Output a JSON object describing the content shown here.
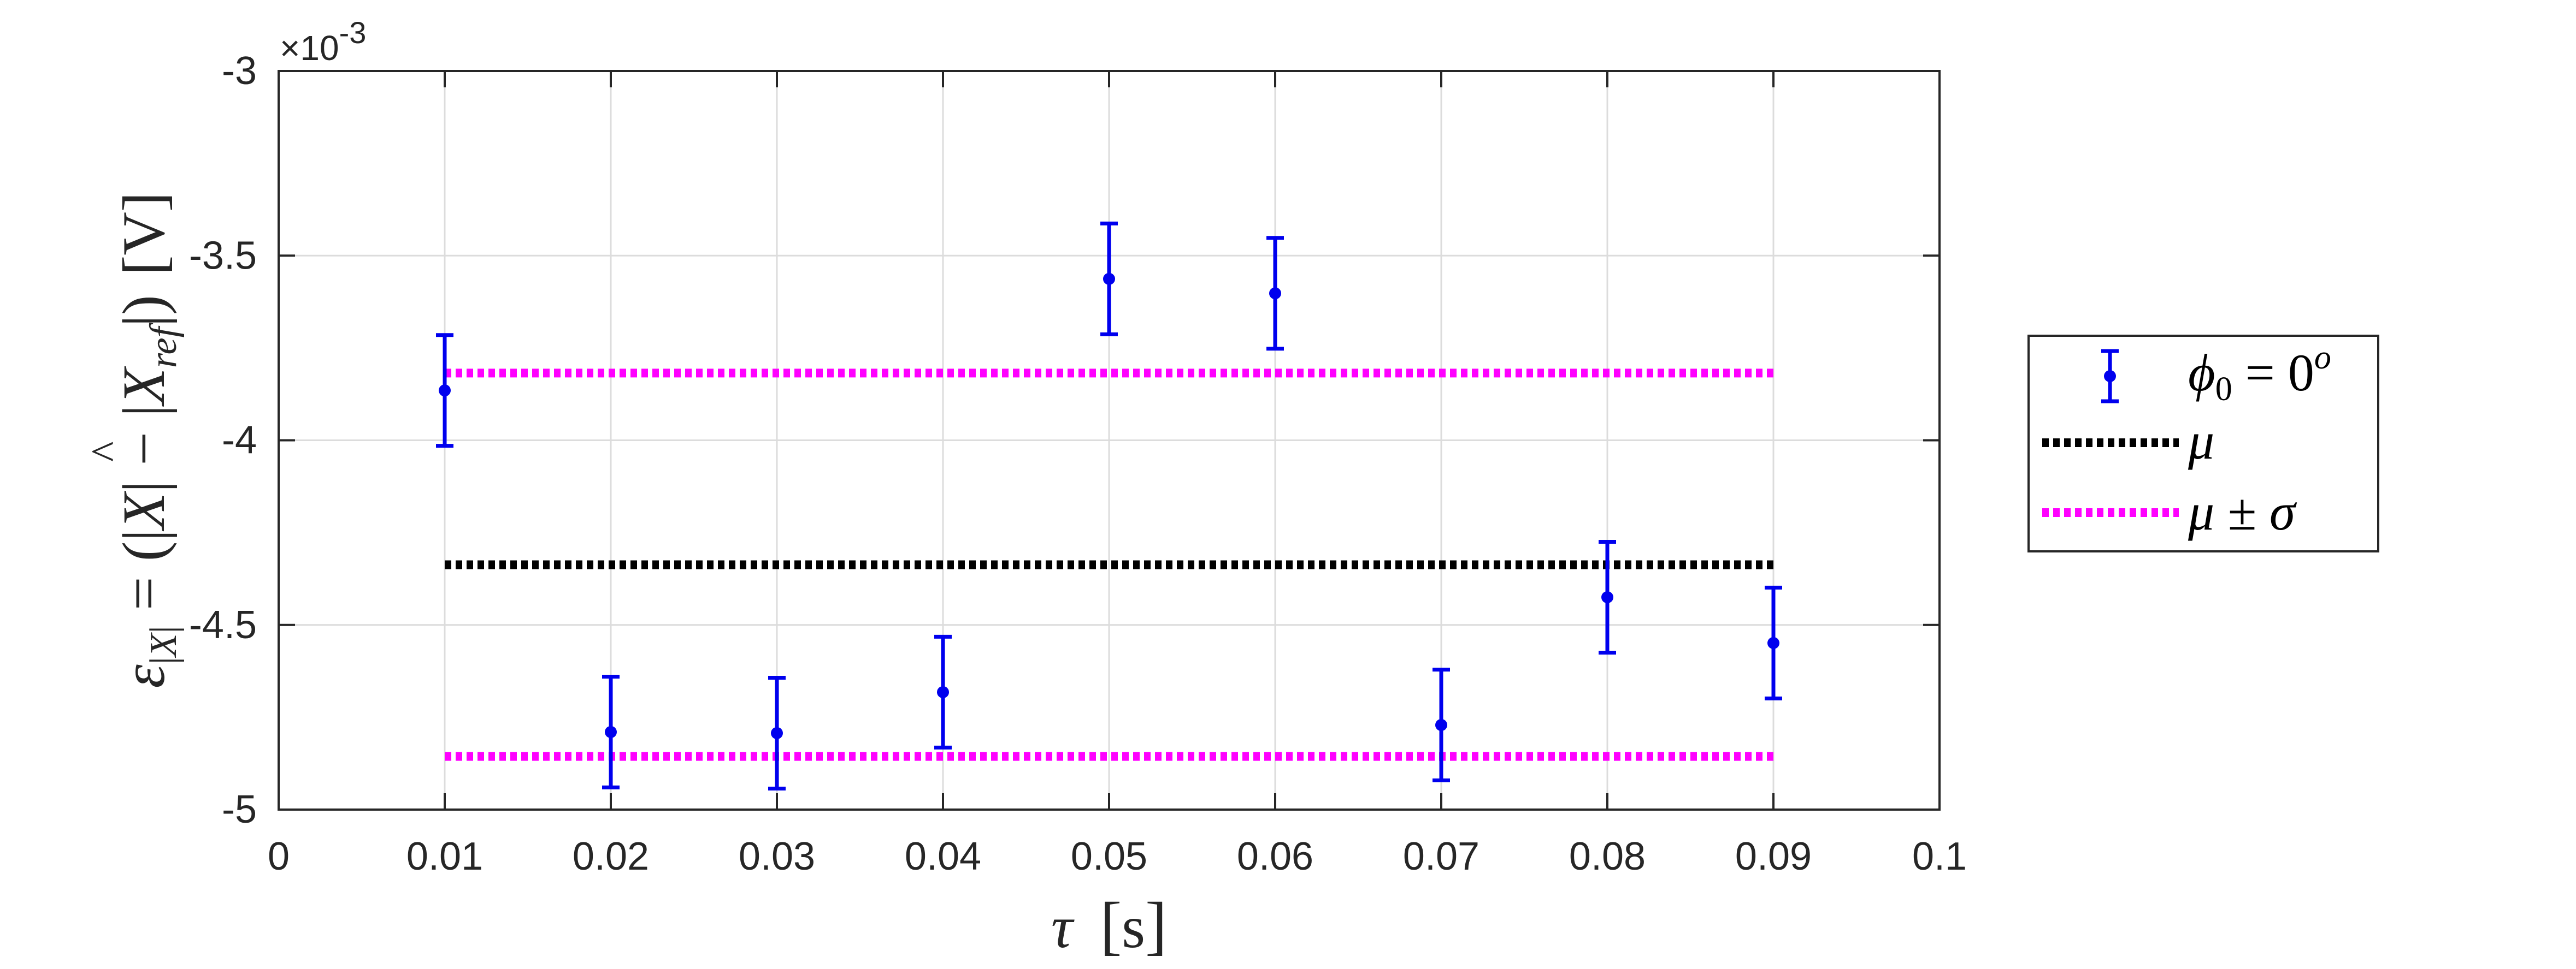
{
  "chart_data": {
    "type": "scatter",
    "title": "",
    "x_ticks": [
      "0",
      "0.01",
      "0.02",
      "0.03",
      "0.04",
      "0.05",
      "0.06",
      "0.07",
      "0.08",
      "0.09",
      "0.1"
    ],
    "y_ticks": [
      "-3",
      "-3.5",
      "-4",
      "-4.5",
      "-5"
    ],
    "y_exponent_prefix": "×10",
    "y_exponent": "-3",
    "xlim": [
      0,
      0.1
    ],
    "ylim": [
      -0.005,
      -0.003
    ],
    "grid": true,
    "legend_position": "right",
    "xlabel": {
      "symbol": "τ",
      "unit": "s"
    },
    "ylabel": {
      "epsilon": "ε",
      "sub_bar1": "|",
      "sub_x": "X",
      "sub_bar2": "|",
      "eq": "=",
      "open": "(|",
      "xhat": "X",
      "hat": "^",
      "minus": "|  −  |",
      "xref": "X",
      "ref_sub": "ref",
      "close": "|)",
      "unit": "[V]"
    },
    "series": [
      {
        "kind": "errorbar",
        "color": "#0000ee",
        "legend": {
          "phi": "ϕ",
          "sub": "0",
          "eq": "= 0",
          "sup": "o"
        },
        "points": [
          {
            "x": 0.01,
            "y": -0.003865,
            "err": 0.00015
          },
          {
            "x": 0.02,
            "y": -0.00479,
            "err": 0.00015
          },
          {
            "x": 0.03,
            "y": -0.004793,
            "err": 0.00015
          },
          {
            "x": 0.04,
            "y": -0.004682,
            "err": 0.00015
          },
          {
            "x": 0.05,
            "y": -0.003563,
            "err": 0.00015
          },
          {
            "x": 0.06,
            "y": -0.003602,
            "err": 0.00015
          },
          {
            "x": 0.07,
            "y": -0.004771,
            "err": 0.00015
          },
          {
            "x": 0.08,
            "y": -0.004425,
            "err": 0.00015
          },
          {
            "x": 0.09,
            "y": -0.004549,
            "err": 0.00015
          }
        ]
      },
      {
        "kind": "hline",
        "color": "#000000",
        "style": "dotted",
        "x_range": [
          0.01,
          0.09
        ],
        "y": -0.004337,
        "legend": {
          "text": "μ"
        }
      },
      {
        "kind": "hline-pair",
        "color": "#ff00ff",
        "style": "dotted",
        "x_range": [
          0.01,
          0.09
        ],
        "y_values": [
          -0.003818,
          -0.004856
        ],
        "legend": {
          "text": "μ ± σ"
        }
      }
    ]
  }
}
